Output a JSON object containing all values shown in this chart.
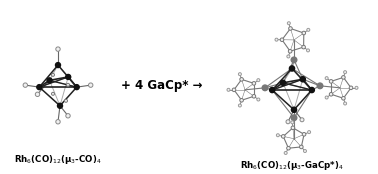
{
  "background_color": "#ffffff",
  "text_color": "#000000",
  "bond_color": "#666666",
  "heavy_bond_color": "#222222",
  "atom_open_color": "#888888",
  "dark_atom_color": "#111111",
  "ga_atom_color": "#777777",
  "label_left": "Rh$_6$(CO)$_{12}$(μ$_3$-CO)$_4$",
  "label_right": "Rh$_6$(CO)$_{12}$(μ$_3$-GaCp*)$_4$",
  "reaction_text": "+ 4 GaCp* →",
  "fig_width": 3.78,
  "fig_height": 1.74,
  "dpi": 100
}
